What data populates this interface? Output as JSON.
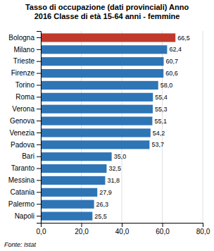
{
  "chart_data": {
    "type": "bar",
    "orientation": "horizontal",
    "title": "Tasso di occupazione (dati provinciali) Anno\n2016 Classe di età 15-64 anni - femmine",
    "categories": [
      "Bologna",
      "Milano",
      "Trieste",
      "Firenze",
      "Torino",
      "Roma",
      "Verona",
      "Genova",
      "Venezia",
      "Padova",
      "Bari",
      "Taranto",
      "Messina",
      "Catania",
      "Palermo",
      "Napoli"
    ],
    "values": [
      66.5,
      62.4,
      60.7,
      60.6,
      58.0,
      55.4,
      55.3,
      55.1,
      54.2,
      53.7,
      35.0,
      32.5,
      31.8,
      27.9,
      26.3,
      25.5
    ],
    "value_labels": [
      "66,5",
      "62,4",
      "60,7",
      "60,6",
      "58,0",
      "55,4",
      "55,3",
      "55,1",
      "54,2",
      "53,7",
      "35,0",
      "32,5",
      "31,8",
      "27,9",
      "26,3",
      "25,5"
    ],
    "data_labels": true,
    "colors": [
      "#c0392b",
      "#2e75b6",
      "#2e75b6",
      "#2e75b6",
      "#2e75b6",
      "#2e75b6",
      "#2e75b6",
      "#2e75b6",
      "#2e75b6",
      "#2e75b6",
      "#2e75b6",
      "#2e75b6",
      "#2e75b6",
      "#2e75b6",
      "#2e75b6",
      "#2e75b6"
    ],
    "xlim": [
      0,
      80
    ],
    "xticks": [
      {
        "value": 0,
        "label": "0,0"
      },
      {
        "value": 20,
        "label": "20,0"
      },
      {
        "value": 40,
        "label": "40,0"
      },
      {
        "value": 60,
        "label": "60,0"
      },
      {
        "value": 80,
        "label": "80,0"
      }
    ],
    "grid": true,
    "annotations": [
      "Fonte: Istat"
    ]
  }
}
